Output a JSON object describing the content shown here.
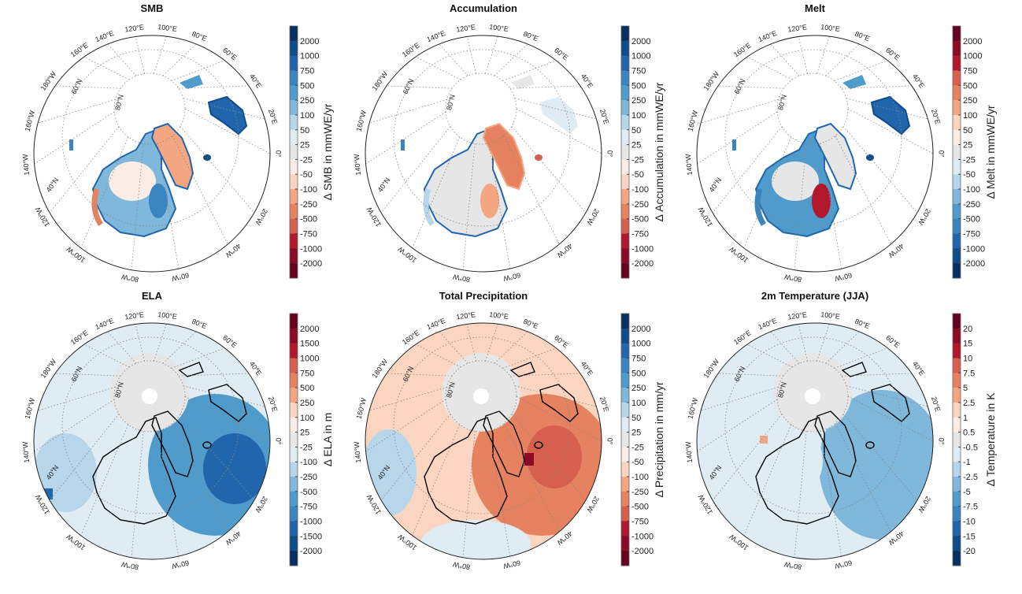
{
  "figure": {
    "meridian_labels": [
      "0°",
      "20°E",
      "40°E",
      "60°E",
      "80°E",
      "100°E",
      "120°E",
      "140°E",
      "160°E",
      "180°W",
      "160°W",
      "140°W",
      "120°W",
      "100°W",
      "80°W",
      "60°W",
      "40°W",
      "20°W"
    ],
    "parallel_labels": [
      "80°N",
      "60°N",
      "40°N"
    ],
    "palette_blue_to_red": [
      "#053061",
      "#0f4c8a",
      "#2166ac",
      "#3a84c0",
      "#4f9bcb",
      "#7fb8da",
      "#b7d6ea",
      "#dfecf4",
      "#e6e6e6",
      "#fbece6",
      "#fcd5c0",
      "#f4a582",
      "#e6825f",
      "#d6604d",
      "#b2182b",
      "#8c0a26",
      "#67001f"
    ]
  },
  "panels": [
    {
      "id": "smb",
      "title": "SMB",
      "cbar_label": "Δ SMB in mmWE/yr",
      "top_color": "blue",
      "ticks": [
        "2000",
        "1000",
        "750",
        "500",
        "250",
        "100",
        "50",
        "25",
        "-25",
        "-50",
        "-100",
        "-250",
        "-500",
        "-750",
        "-1000",
        "-2000"
      ]
    },
    {
      "id": "accumulation",
      "title": "Accumulation",
      "cbar_label": "Δ Accumulation in mmWE/yr",
      "top_color": "blue",
      "ticks": [
        "2000",
        "1000",
        "750",
        "500",
        "250",
        "100",
        "50",
        "25",
        "-25",
        "-50",
        "-100",
        "-250",
        "-500",
        "-750",
        "-1000",
        "-2000"
      ]
    },
    {
      "id": "melt",
      "title": "Melt",
      "cbar_label": "Δ Melt in mmWE/yr",
      "top_color": "red",
      "ticks": [
        "2000",
        "1000",
        "750",
        "500",
        "250",
        "100",
        "50",
        "25",
        "-25",
        "-50",
        "-100",
        "-250",
        "-500",
        "-750",
        "-1000",
        "-2000"
      ]
    },
    {
      "id": "ela",
      "title": "ELA",
      "cbar_label": "Δ ELA in m",
      "top_color": "red",
      "ticks": [
        "2000",
        "1500",
        "1000",
        "750",
        "500",
        "250",
        "100",
        "25",
        "-25",
        "-100",
        "-250",
        "-500",
        "-750",
        "-1000",
        "-1500",
        "-2000"
      ]
    },
    {
      "id": "precipitation",
      "title": "Total Precipitation",
      "cbar_label": "Δ Precipitation in mm/yr",
      "top_color": "blue",
      "ticks": [
        "2000",
        "1000",
        "750",
        "500",
        "250",
        "100",
        "50",
        "25",
        "-25",
        "-50",
        "-100",
        "-250",
        "-500",
        "-750",
        "-1000",
        "-2000"
      ]
    },
    {
      "id": "temperature",
      "title": "2m Temperature (JJA)",
      "cbar_label": "Δ Temperature in K",
      "top_color": "red",
      "ticks": [
        "20",
        "15",
        "10",
        "7.5",
        "5",
        "2.5",
        "1",
        "0.5",
        "-0.5",
        "-1",
        "-2.5",
        "-5",
        "-7.5",
        "-10",
        "-15",
        "-20"
      ]
    }
  ]
}
